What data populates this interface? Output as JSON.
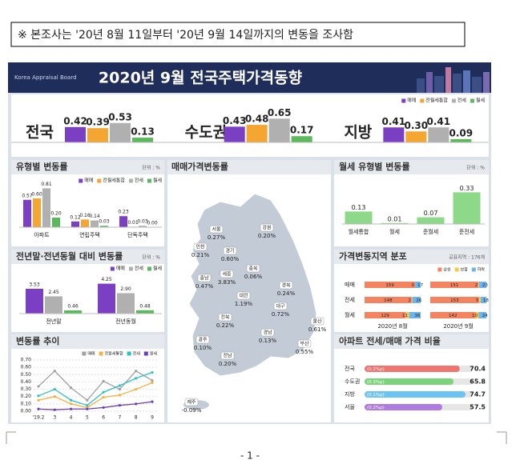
{
  "top_note": "※ 본조사는 '20년 8월 11일부터 '20년 9월 14일까지의 변동을 조사함",
  "header": {
    "org": "Korea Appraisal Board",
    "title": "2020년 9월 전국주택가격동향"
  },
  "chart_data": [
    {
      "type": "bar",
      "categories": [
        "전국",
        "수도권",
        "지방"
      ],
      "ylim": [
        0,
        0.7
      ],
      "series": [
        {
          "name": "매매",
          "color": "#7b3fc4",
          "values": [
            0.42,
            0.43,
            0.41
          ],
          "value_labels": [
            "0.42",
            "0.43",
            "0.41"
          ]
        },
        {
          "name": "전월세통합",
          "color": "#f5a631",
          "values": [
            0.39,
            0.48,
            0.3
          ],
          "value_labels": [
            "0.39",
            "0.48",
            "0.30"
          ]
        },
        {
          "name": "전세",
          "color": "#b0b0b0",
          "values": [
            0.53,
            0.65,
            0.41
          ],
          "value_labels": [
            "0.53",
            "0.65",
            "0.41"
          ]
        },
        {
          "name": "월세",
          "color": "#5cb85c",
          "values": [
            0.13,
            0.17,
            0.09
          ],
          "value_labels": [
            "0.13",
            "0.17",
            "0.09"
          ]
        }
      ]
    },
    {
      "type": "bar",
      "title": "유형별 변동률",
      "unit": "단위 : %",
      "categories": [
        "아파트",
        "연립주택",
        "단독주택"
      ],
      "ylim": [
        0,
        0.9
      ],
      "series": [
        {
          "name": "매매",
          "color": "#7b3fc4",
          "values": [
            0.57,
            0.12,
            0.23
          ],
          "value_labels": [
            "0.57",
            "0.12",
            "0.23"
          ]
        },
        {
          "name": "전월세통합",
          "color": "#f5a631",
          "values": [
            0.6,
            0.16,
            0.01
          ],
          "value_labels": [
            "0.60",
            "0.16",
            "0.01"
          ]
        },
        {
          "name": "전세",
          "color": "#b0b0b0",
          "values": [
            0.81,
            0.14,
            0.03
          ],
          "value_labels": [
            "0.81",
            "0.14",
            "0.03"
          ]
        },
        {
          "name": "월세",
          "color": "#5cb85c",
          "values": [
            0.2,
            0.03,
            0.0
          ],
          "value_labels": [
            "0.20",
            "0.03",
            "0.00"
          ]
        }
      ]
    },
    {
      "type": "bar",
      "title": "전년말·전년동월 대비 변동률",
      "unit": "단위 : %",
      "categories": [
        "전년말",
        "전년동월"
      ],
      "ylim": [
        0,
        5
      ],
      "series": [
        {
          "name": "매매",
          "color": "#7b3fc4",
          "values": [
            3.53,
            4.25
          ],
          "value_labels": [
            "3.53",
            "4.25"
          ]
        },
        {
          "name": "전세",
          "color": "#b0b0b0",
          "values": [
            2.45,
            2.9
          ],
          "value_labels": [
            "2.45",
            "2.90"
          ]
        },
        {
          "name": "월세",
          "color": "#5cb85c",
          "values": [
            0.46,
            0.48
          ],
          "value_labels": [
            "0.46",
            "0.48"
          ]
        }
      ]
    },
    {
      "type": "line",
      "title": "변동률 추이",
      "categories": [
        "'19.2",
        "3",
        "4",
        "5",
        "6",
        "7",
        "8",
        "9"
      ],
      "ylim": [
        0,
        0.7
      ],
      "yticks": [
        {
          "value": 0,
          "label": "0.00"
        },
        {
          "value": 0.1,
          "label": "0.10"
        },
        {
          "value": 0.2,
          "label": "0.20"
        },
        {
          "value": 0.3,
          "label": "0.30"
        },
        {
          "value": 0.4,
          "label": "0.40"
        },
        {
          "value": 0.5,
          "label": "0.50"
        },
        {
          "value": 0.6,
          "label": "0.60"
        },
        {
          "value": 0.7,
          "label": "0.70"
        }
      ],
      "grid": true,
      "series": [
        {
          "name": "매매",
          "color": "#a0a0a0",
          "values": [
            0.34,
            0.55,
            0.32,
            0.15,
            0.41,
            0.3,
            0.55,
            0.42
          ]
        },
        {
          "name": "전월세통합",
          "color": "#f5b041",
          "values": [
            0.15,
            0.2,
            0.1,
            0.05,
            0.19,
            0.22,
            0.3,
            0.39
          ]
        },
        {
          "name": "전세",
          "color": "#2fc0c0",
          "values": [
            0.21,
            0.3,
            0.15,
            0.08,
            0.26,
            0.35,
            0.45,
            0.53
          ]
        },
        {
          "name": "월세",
          "color": "#6a3fb5",
          "values": [
            0.03,
            0.02,
            0.03,
            0.03,
            0.05,
            0.08,
            0.1,
            0.13
          ]
        }
      ]
    },
    {
      "type": "bar",
      "title": "월세 유형별 변동률",
      "unit": "단위 : %",
      "categories": [
        "월세통합",
        "월세",
        "준월세",
        "준전세"
      ],
      "ylim": [
        0,
        0.4
      ],
      "series": [
        {
          "color": "#8ed88a",
          "values": [
            0.13,
            0.01,
            0.07,
            0.33
          ],
          "value_labels": [
            "0.13",
            "0.01",
            "0.07",
            "0.33"
          ]
        }
      ]
    },
    {
      "type": "stack",
      "title": "가격변동지역 분포",
      "subtitle": "공표지역 : 176개",
      "categories": [
        "매매",
        "전세",
        "월세"
      ],
      "periods": [
        "2020년 8월",
        "2020년 9월"
      ],
      "xlim": [
        0,
        176
      ],
      "series": [
        {
          "name": "상승",
          "color": "#f4845f",
          "values": [
            [
              159,
              148,
              129
            ],
            [
              151,
              153,
              142
            ]
          ]
        },
        {
          "name": "보합",
          "color": "#f7c948",
          "values": [
            [
              0,
              2,
              11
            ],
            [
              2,
              5,
              10
            ]
          ]
        },
        {
          "name": "하락",
          "color": "#6cb4ee",
          "values": [
            [
              17,
              26,
              36
            ],
            [
              23,
              18,
              24
            ]
          ]
        }
      ]
    },
    {
      "type": "ratio",
      "title": "아파트 전세/매매 가격 비율",
      "categories": [
        "전국",
        "수도권",
        "지방",
        "서울"
      ],
      "xlim": [
        0,
        80
      ],
      "values": [
        70.4,
        65.8,
        74.7,
        57.5
      ],
      "colors": [
        "#f07470",
        "#7cd37c",
        "#6ec3f5",
        "#b07be0"
      ],
      "annotations": [
        "(0.2%p)",
        "(0.3%p)",
        "(0.1%p)",
        "(0.2%p)"
      ]
    }
  ],
  "map": {
    "title": "매매가격변동률",
    "regions": [
      "서울",
      "강원",
      "인천",
      "경기",
      "세종",
      "충북",
      "충남",
      "대전",
      "경북",
      "대구",
      "전북",
      "울산",
      "경남",
      "광주",
      "부산",
      "전남",
      "제주"
    ],
    "labels": [
      "0.27%",
      "0.20%",
      "0.21%",
      "0.60%",
      "3.83%",
      "0.06%",
      "0.47%",
      "1.19%",
      "0.24%",
      "0.72%",
      "0.22%",
      "0.61%",
      "0.13%",
      "0.10%",
      "0.55%",
      "0.20%",
      "-0.09%"
    ]
  },
  "page_number": "- 1 -"
}
